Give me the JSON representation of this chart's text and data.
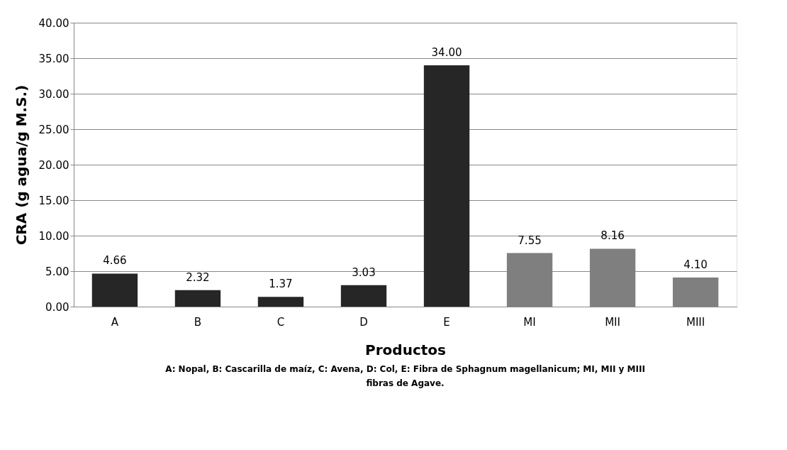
{
  "chart_data": {
    "type": "bar",
    "ylabel": "CRA (g agua/g M.S.)",
    "xlabel": "Productos",
    "categories": [
      "A",
      "B",
      "C",
      "D",
      "E",
      "MI",
      "MII",
      "MIII"
    ],
    "values": [
      4.66,
      2.32,
      1.37,
      3.03,
      34.0,
      7.55,
      8.16,
      4.1
    ],
    "value_labels": [
      "4.66",
      "2.32",
      "1.37",
      "3.03",
      "34.00",
      "7.55",
      "8.16",
      "4.10"
    ],
    "colors": [
      "#262626",
      "#262626",
      "#262626",
      "#262626",
      "#262626",
      "#7f7f7f",
      "#7f7f7f",
      "#7f7f7f"
    ],
    "ylim": [
      0,
      40
    ],
    "yticks": [
      {
        "value": 0,
        "label": "0.00"
      },
      {
        "value": 5,
        "label": "5.00"
      },
      {
        "value": 10,
        "label": "10.00"
      },
      {
        "value": 15,
        "label": "15.00"
      },
      {
        "value": 20,
        "label": "20.00"
      },
      {
        "value": 25,
        "label": "25.00"
      },
      {
        "value": 30,
        "label": "30.00"
      },
      {
        "value": 35,
        "label": "35.00"
      },
      {
        "value": 40,
        "label": "40.00"
      }
    ],
    "grid": "y",
    "annotations": [
      "A: Nopal, B: Cascarilla de maíz, C: Avena, D: Col, E: Fibra de Sphagnum magellanicum; MI, MII y MIII fibras de Agave."
    ]
  }
}
